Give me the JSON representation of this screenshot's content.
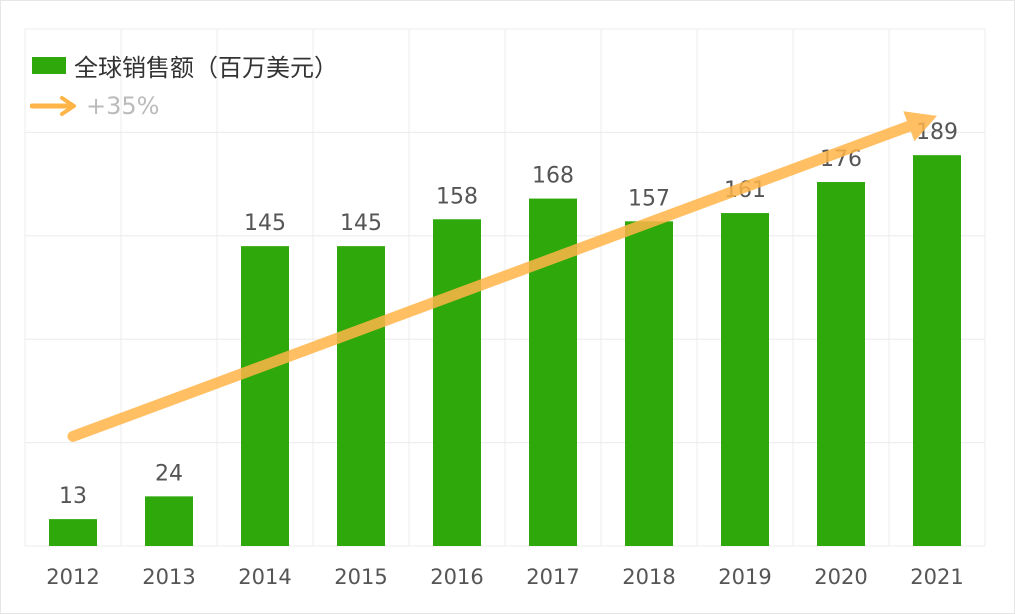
{
  "chart_data": {
    "type": "bar",
    "categories": [
      "2012",
      "2013",
      "2014",
      "2015",
      "2016",
      "2017",
      "2018",
      "2019",
      "2020",
      "2021"
    ],
    "series": [
      {
        "name": "全球销售额（百万美元）",
        "values": [
          13,
          24,
          145,
          145,
          158,
          168,
          157,
          161,
          176,
          189
        ],
        "color": "#2ea80a"
      }
    ],
    "data_labels": [
      "13",
      "24",
      "145",
      "145",
      "158",
      "168",
      "157",
      "161",
      "176",
      "189"
    ],
    "trend": {
      "label": "+35%",
      "color": "#ffb547",
      "from": {
        "x": "2012",
        "y": 53
      },
      "to": {
        "x": "2021",
        "y": 208
      }
    },
    "ylim": [
      0,
      250
    ],
    "y_gridlines": [
      0,
      50,
      100,
      150,
      200,
      250
    ],
    "x_gridlines": true,
    "grid": true,
    "legend_position": "top-left",
    "colors": {
      "bar": "#2ea80a",
      "trend": "#ffb547",
      "grid": "#ececec",
      "tick_text": "#555555",
      "label_text": "#555555",
      "legend_text": "#333333",
      "trend_text": "#bbbbbb"
    }
  }
}
